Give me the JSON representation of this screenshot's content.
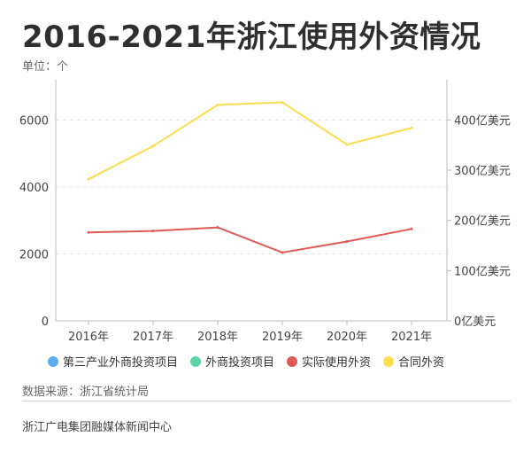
{
  "title": "2016-2021年浙江使用外资情况",
  "unit_label": "单位：个",
  "source": "数据来源：浙江省统计局",
  "footer": "浙江广电集团融媒体新闻中心",
  "colors": {
    "third_industry_projects": "#5aaef0",
    "foreign_investment_projects": "#5cd6a6",
    "actual_use": "#e05a55",
    "contract": "#fddd50"
  },
  "legend": [
    {
      "label": "第三产业外商投资项目",
      "color": "#5aaef0"
    },
    {
      "label": "外商投资项目",
      "color": "#5cd6a6"
    },
    {
      "label": "实际使用外资",
      "color": "#e05a55"
    },
    {
      "label": "合同外资",
      "color": "#fddd50"
    }
  ],
  "chart_data": {
    "type": "line",
    "categories": [
      "2016年",
      "2017年",
      "2018年",
      "2019年",
      "2020年",
      "2021年"
    ],
    "left_axis": {
      "ticks": [
        "0",
        "2000",
        "4000",
        "6000"
      ],
      "ylim": [
        0,
        7200
      ]
    },
    "right_axis": {
      "ticks": [
        "0亿美元",
        "100亿美元",
        "200亿美元",
        "300亿美元",
        "400亿美元"
      ],
      "ylim": [
        0,
        480
      ]
    },
    "series": [
      {
        "name": "实际使用外资",
        "axis": "right",
        "color": "#e05a55",
        "values": [
          176,
          179,
          186,
          136,
          158,
          183
        ]
      },
      {
        "name": "合同外资",
        "axis": "right",
        "color": "#fddd50",
        "values": [
          282,
          348,
          430,
          435,
          351,
          384
        ]
      }
    ],
    "grid": true
  }
}
